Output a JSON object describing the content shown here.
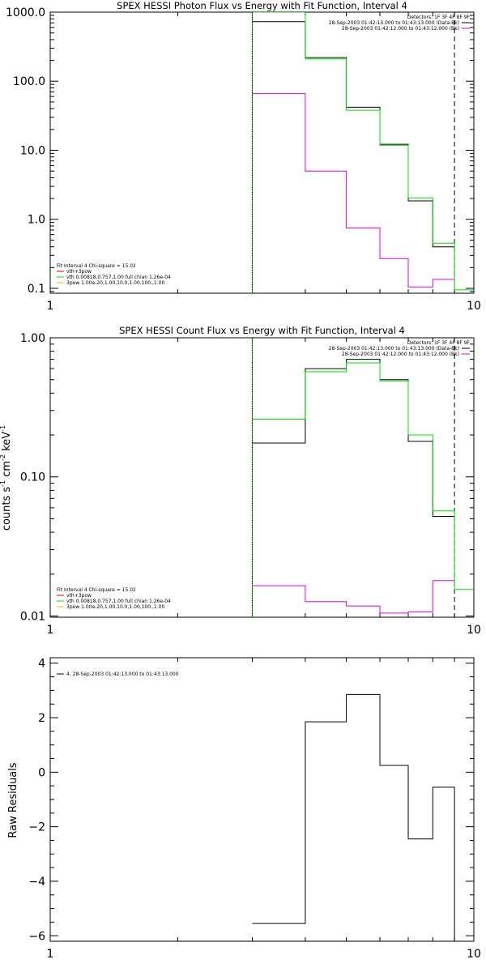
{
  "chart_data": [
    {
      "type": "line",
      "title": "SPEX HESSI Photon Flux vs Energy with Fit Function, Interval 4",
      "xscale": "log",
      "yscale": "log",
      "xlim": [
        1,
        10
      ],
      "ylim": [
        0.085,
        1000
      ],
      "x_ticks": [
        "1",
        "10"
      ],
      "y_ticks": [
        {
          "value": 1000,
          "label": "1000.0"
        },
        {
          "value": 100,
          "label": "100.0"
        },
        {
          "value": 10,
          "label": "10.0"
        },
        {
          "value": 1,
          "label": "1.0"
        },
        {
          "value": 0.1,
          "label": "0.1"
        }
      ],
      "xlabel": "",
      "ylabel": "",
      "bin_edges": [
        3,
        4,
        5,
        6,
        7,
        8,
        9,
        10
      ],
      "series": [
        {
          "name": "",
          "color": "#000000",
          "values": [
            730,
            220,
            42,
            12.2,
            1.85,
            0.4,
            null
          ]
        },
        {
          "name": "",
          "color": "#00e000",
          "values": [
            1050,
            210,
            38,
            11.8,
            2.05,
            0.45,
            0.095
          ]
        },
        {
          "name": "",
          "color": "#e000e0",
          "values": [
            66,
            5,
            0.75,
            0.27,
            0.105,
            0.135,
            null
          ]
        }
      ],
      "vlines": [
        {
          "x": 3,
          "style": "solid",
          "color": "#00c000"
        },
        {
          "x": 3,
          "style": "dotted",
          "color": "#000000"
        },
        {
          "x": 9,
          "style": "dashed",
          "color": "#000000"
        }
      ],
      "legend_top_right": {
        "heading": "Detectors: 1F 3F 4F 8F 9F",
        "entries": [
          {
            "label": "28-Sep-2003 01:42:13.000 to 01:43:13.000 (Data-Bk)",
            "color": "#000000"
          },
          {
            "label": "28-Sep-2003 01:42:12.000 to 01:43:12.000 (Bk)",
            "color": "#e000e0"
          }
        ]
      },
      "legend_bottom_left": {
        "heading": "Fit Interval 4   Chi-square = 15.02",
        "entries": [
          {
            "label": "vth+3pow",
            "color": "#e00000"
          },
          {
            "label": "vth 0.00818,0.757,1.00   full chian 1.26e-04",
            "color": "#00e000"
          },
          {
            "label": "3pow 1.00e-20,1.00,10.0,1.00,100.,1.00",
            "color": "#e8c000"
          }
        ]
      }
    },
    {
      "type": "line",
      "title": "SPEX HESSI Count Flux vs Energy with Fit Function, Interval 4",
      "xscale": "log",
      "yscale": "log",
      "xlim": [
        1,
        10
      ],
      "ylim": [
        0.0098,
        1.0
      ],
      "x_ticks": [
        "1",
        "10"
      ],
      "y_ticks": [
        {
          "value": 1,
          "label": "1.00"
        },
        {
          "value": 0.1,
          "label": "0.10"
        },
        {
          "value": 0.01,
          "label": "0.01"
        }
      ],
      "xlabel": "",
      "ylabel_parts": [
        "counts s",
        "-1",
        " cm",
        "-2",
        " keV",
        "-1"
      ],
      "bin_edges": [
        3,
        4,
        5,
        6,
        7,
        8,
        9,
        10
      ],
      "series": [
        {
          "name": "",
          "color": "#000000",
          "values": [
            0.175,
            0.6,
            0.7,
            0.5,
            0.18,
            0.052,
            null
          ]
        },
        {
          "name": "",
          "color": "#00e000",
          "values": [
            0.26,
            0.57,
            0.66,
            0.49,
            0.2,
            0.057,
            0.0155
          ]
        },
        {
          "name": "",
          "color": "#e000e0",
          "values": [
            0.0165,
            0.0127,
            0.0118,
            0.0105,
            0.0107,
            0.018,
            null
          ]
        }
      ],
      "vlines": [
        {
          "x": 3,
          "style": "solid",
          "color": "#00c000"
        },
        {
          "x": 3,
          "style": "dotted",
          "color": "#000000"
        },
        {
          "x": 9,
          "style": "dashed",
          "color": "#000000"
        }
      ],
      "legend_top_right": {
        "heading": "Detectors: 1F 3F 4F 8F 9F",
        "entries": [
          {
            "label": "28-Sep-2003 01:42:13.000 to 01:43:13.000 (Data-Bk)",
            "color": "#000000"
          },
          {
            "label": "28-Sep-2003 01:42:12.000 to 01:43:12.000 (Bk)",
            "color": "#e000e0"
          }
        ]
      },
      "legend_bottom_left": {
        "heading": "Fit Interval 4   Chi-square = 15.02",
        "entries": [
          {
            "label": "vth+3pow",
            "color": "#e00000"
          },
          {
            "label": "vth 0.00818,0.757,1.00   full chian 1.26e-04",
            "color": "#00e000"
          },
          {
            "label": "3pow 1.00e-20,1.00,10.0,1.00,100.,1.00",
            "color": "#e8c000"
          }
        ]
      }
    },
    {
      "type": "line",
      "title": "",
      "xscale": "log",
      "yscale": "linear",
      "xlim": [
        1,
        10
      ],
      "ylim": [
        -6.2,
        4.2
      ],
      "x_ticks": [
        "1",
        "10"
      ],
      "y_ticks": [
        {
          "value": 4,
          "label": "4"
        },
        {
          "value": 2,
          "label": "2"
        },
        {
          "value": 0,
          "label": "0"
        },
        {
          "value": -2,
          "label": "−2"
        },
        {
          "value": -4,
          "label": "−4"
        },
        {
          "value": -6,
          "label": "−6"
        }
      ],
      "xlabel": "",
      "ylabel": "Raw Residuals",
      "bin_edges": [
        3,
        4,
        5,
        6,
        7,
        8,
        9
      ],
      "series": [
        {
          "name": "4. 28-Sep-2003 01:42:13.000 to 01:43:13.000",
          "color": "#000000",
          "values": [
            -5.55,
            1.85,
            2.85,
            0.25,
            -2.45,
            -0.55
          ]
        }
      ],
      "drop_last_to": -6.2
    }
  ]
}
